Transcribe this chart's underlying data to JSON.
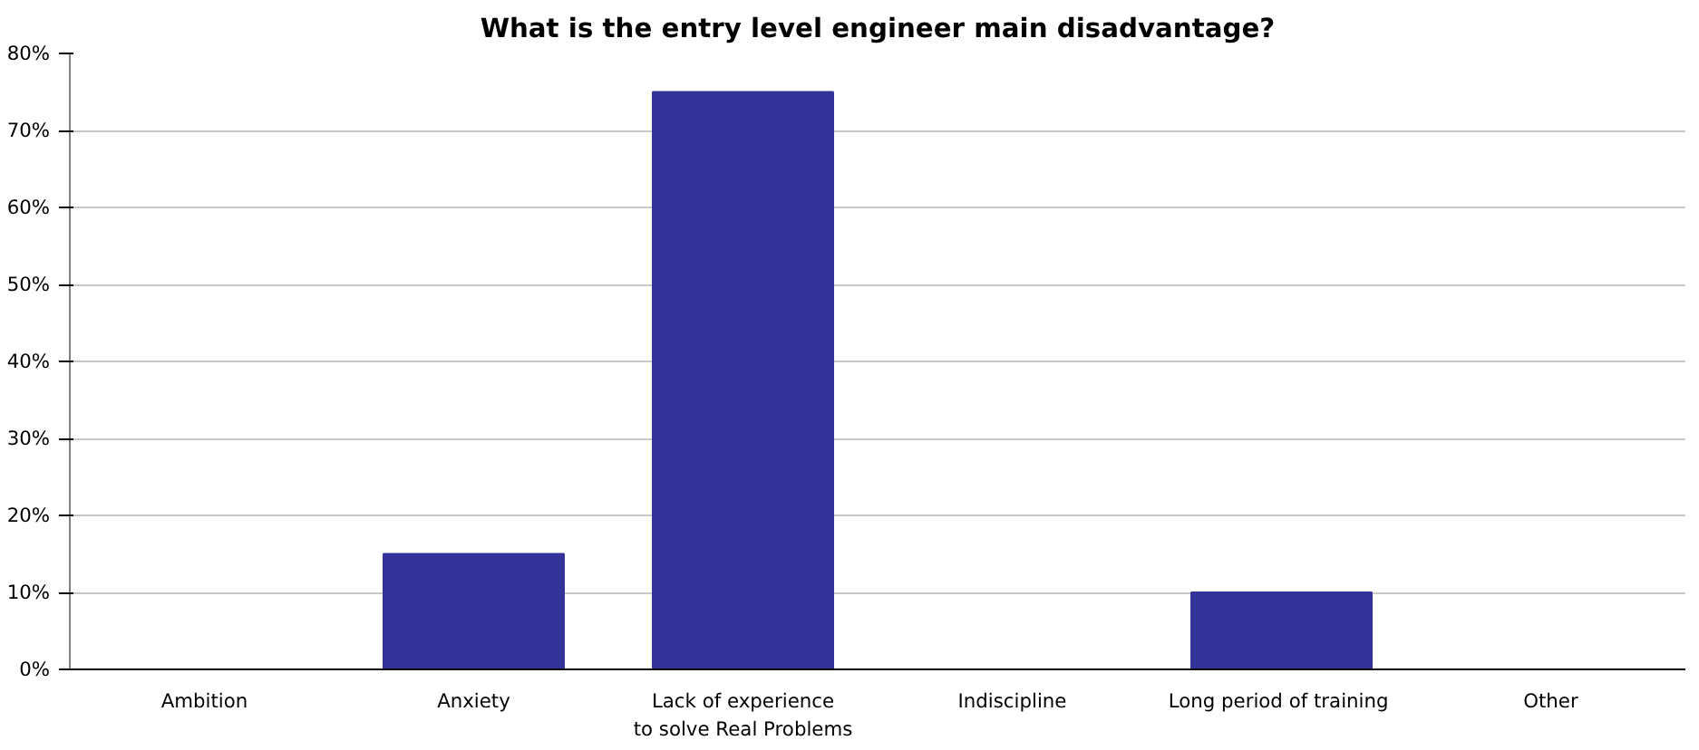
{
  "chart_data": {
    "type": "bar",
    "title": "What is the entry level engineer main disadvantage?",
    "categories": [
      "Ambition",
      "Anxiety",
      "Lack of experience\nto solve Real Problems",
      "Indiscipline",
      "Long period of  training",
      "Other"
    ],
    "values": [
      0,
      15,
      75,
      0,
      10,
      0
    ],
    "color": "#333399",
    "ylim": [
      0,
      80
    ],
    "yticks": [
      {
        "value": 0,
        "label": "0%"
      },
      {
        "value": 10,
        "label": "10%"
      },
      {
        "value": 20,
        "label": "20%"
      },
      {
        "value": 30,
        "label": "30%"
      },
      {
        "value": 40,
        "label": "40%"
      },
      {
        "value": 50,
        "label": "50%"
      },
      {
        "value": 60,
        "label": "60%"
      },
      {
        "value": 70,
        "label": "70%"
      },
      {
        "value": 80,
        "label": "80%"
      }
    ],
    "grid": "y"
  }
}
